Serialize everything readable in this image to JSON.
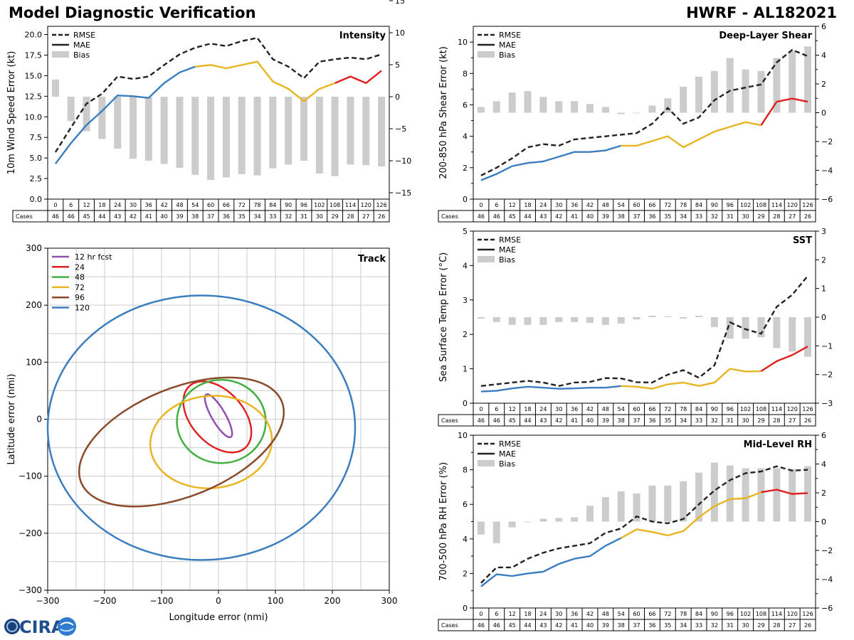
{
  "header": {
    "title": "Model Diagnostic Verification",
    "storm": "HWRF - AL182021"
  },
  "logo": {
    "text": "CIRA"
  },
  "legend_labels": {
    "rmse": "RMSE",
    "mae": "MAE",
    "bias": "Bias"
  },
  "table": {
    "cases_label": "Cases",
    "hours": [
      0,
      6,
      12,
      18,
      24,
      30,
      36,
      42,
      48,
      54,
      60,
      66,
      72,
      78,
      84,
      90,
      96,
      102,
      108,
      114,
      120,
      126
    ],
    "cases": [
      46,
      46,
      45,
      44,
      43,
      42,
      41,
      40,
      39,
      38,
      37,
      36,
      35,
      34,
      33,
      32,
      31,
      30,
      29,
      28,
      27,
      26
    ]
  },
  "colors": {
    "early": "#3a7dc0",
    "mid": "#e8b420",
    "late": "#e02020",
    "rmse": "#222222",
    "bias": "#cccccc",
    "grid": "#cccccc"
  },
  "chart_data": [
    {
      "id": "intensity",
      "type": "line",
      "title": "Intensity",
      "ylabel": "10m Wind Speed Error (kt)",
      "ylim": [
        0,
        21
      ],
      "yticks": [
        "0.0",
        "2.5",
        "5.0",
        "7.5",
        "10.0",
        "12.5",
        "15.0",
        "17.5",
        "20.0"
      ],
      "y2lim": [
        -16,
        11
      ],
      "y2ticks": [
        "−15",
        "−10",
        "−5",
        "0",
        "5",
        "10",
        "15"
      ],
      "x": [
        0,
        6,
        12,
        18,
        24,
        30,
        36,
        42,
        48,
        54,
        60,
        66,
        72,
        78,
        84,
        90,
        96,
        102,
        108,
        114,
        120,
        126
      ],
      "rmse": [
        5.7,
        8.7,
        11.6,
        12.8,
        14.9,
        14.6,
        14.9,
        16.3,
        17.6,
        18.4,
        18.9,
        18.6,
        19.2,
        19.6,
        17.0,
        16.1,
        14.7,
        16.7,
        17.0,
        17.2,
        17.0,
        17.6
      ],
      "mae": [
        4.3,
        6.8,
        9.0,
        10.7,
        12.6,
        12.5,
        12.3,
        14.1,
        15.4,
        16.1,
        16.3,
        15.9,
        16.3,
        16.7,
        14.3,
        13.4,
        11.9,
        13.4,
        14.1,
        14.9,
        14.1,
        15.6
      ],
      "bias": [
        2.7,
        -3.8,
        -5.4,
        -6.6,
        -8.1,
        -9.7,
        -10.0,
        -10.5,
        -11.1,
        -12.2,
        -13.0,
        -12.6,
        -12.1,
        -12.3,
        -11.2,
        -10.6,
        -10.0,
        -12.0,
        -12.4,
        -10.6,
        -10.7,
        -10.9
      ]
    },
    {
      "id": "shear",
      "type": "line",
      "title": "Deep-Layer Shear",
      "ylabel": "200-850 hPa Shear Error (kt)",
      "ylim": [
        0,
        11
      ],
      "yticks": [
        "0",
        "2",
        "4",
        "6",
        "8",
        "10"
      ],
      "y2lim": [
        -6,
        6
      ],
      "y2ticks": [
        "−6",
        "−4",
        "−2",
        "0",
        "2",
        "4",
        "6"
      ],
      "x": [
        0,
        6,
        12,
        18,
        24,
        30,
        36,
        42,
        48,
        54,
        60,
        66,
        72,
        78,
        84,
        90,
        96,
        102,
        108,
        114,
        120,
        126
      ],
      "rmse": [
        1.5,
        2.0,
        2.6,
        3.3,
        3.5,
        3.4,
        3.8,
        3.9,
        4.0,
        4.1,
        4.2,
        4.8,
        5.8,
        4.8,
        5.2,
        6.3,
        6.9,
        7.1,
        7.3,
        8.7,
        9.5,
        9.1
      ],
      "mae": [
        1.2,
        1.6,
        2.1,
        2.3,
        2.4,
        2.7,
        3.0,
        3.0,
        3.1,
        3.4,
        3.4,
        3.7,
        4.0,
        3.3,
        3.8,
        4.3,
        4.6,
        4.9,
        4.7,
        6.2,
        6.4,
        6.2
      ],
      "bias": [
        0.4,
        0.8,
        1.4,
        1.5,
        1.1,
        0.8,
        0.8,
        0.6,
        0.4,
        -0.1,
        0.0,
        0.5,
        1.0,
        1.8,
        2.5,
        2.9,
        3.8,
        3.0,
        2.9,
        3.8,
        4.3,
        4.6
      ]
    },
    {
      "id": "sst",
      "type": "line",
      "title": "SST",
      "ylabel": "Sea Surface Temp Error (°C)",
      "ylim": [
        0,
        5
      ],
      "yticks": [
        "0",
        "1",
        "2",
        "3",
        "4",
        "5"
      ],
      "y2lim": [
        -3,
        3
      ],
      "y2ticks": [
        "−3",
        "−2",
        "−1",
        "0",
        "1",
        "2",
        "3"
      ],
      "x": [
        0,
        6,
        12,
        18,
        24,
        30,
        36,
        42,
        48,
        54,
        60,
        66,
        72,
        78,
        84,
        90,
        96,
        102,
        108,
        114,
        120,
        126
      ],
      "rmse": [
        0.5,
        0.55,
        0.6,
        0.65,
        0.6,
        0.5,
        0.6,
        0.62,
        0.73,
        0.72,
        0.61,
        0.6,
        0.83,
        0.96,
        0.74,
        1.1,
        2.35,
        2.15,
        2.02,
        2.8,
        3.15,
        3.7
      ],
      "mae": [
        0.34,
        0.36,
        0.43,
        0.48,
        0.45,
        0.42,
        0.43,
        0.45,
        0.45,
        0.5,
        0.48,
        0.42,
        0.55,
        0.6,
        0.5,
        0.6,
        1.0,
        0.92,
        0.93,
        1.22,
        1.4,
        1.65
      ],
      "bias": [
        -0.05,
        -0.17,
        -0.27,
        -0.27,
        -0.27,
        -0.17,
        -0.17,
        -0.2,
        -0.27,
        -0.22,
        -0.08,
        0.05,
        0.03,
        -0.05,
        0.05,
        -0.35,
        -0.75,
        -0.75,
        -0.7,
        -1.08,
        -1.2,
        -1.38
      ]
    },
    {
      "id": "rh",
      "type": "line",
      "title": "Mid-Level RH",
      "ylabel": "700-500 hPa RH Error (%)",
      "ylim": [
        0,
        10
      ],
      "yticks": [
        "0",
        "2",
        "4",
        "6",
        "8",
        "10"
      ],
      "y2lim": [
        -6,
        6
      ],
      "y2ticks": [
        "−6",
        "−4",
        "−2",
        "0",
        "2",
        "4",
        "6"
      ],
      "x": [
        0,
        6,
        12,
        18,
        24,
        30,
        36,
        42,
        48,
        54,
        60,
        66,
        72,
        78,
        84,
        90,
        96,
        102,
        108,
        114,
        120,
        126
      ],
      "rmse": [
        1.45,
        2.35,
        2.35,
        2.85,
        3.2,
        3.45,
        3.6,
        3.75,
        4.35,
        4.6,
        5.3,
        5.0,
        4.9,
        5.15,
        6.0,
        6.8,
        7.4,
        7.8,
        7.9,
        8.2,
        7.95,
        8.0
      ],
      "mae": [
        1.25,
        1.95,
        1.85,
        2.0,
        2.1,
        2.55,
        2.85,
        3.0,
        3.6,
        4.05,
        4.55,
        4.4,
        4.2,
        4.45,
        5.25,
        5.9,
        6.3,
        6.35,
        6.7,
        6.85,
        6.6,
        6.65
      ],
      "bias": [
        -0.9,
        -1.5,
        -0.4,
        0.0,
        0.2,
        0.25,
        0.3,
        1.1,
        1.7,
        2.1,
        1.95,
        2.5,
        2.5,
        2.8,
        3.4,
        4.1,
        3.9,
        3.7,
        3.7,
        3.7,
        3.65,
        3.85
      ]
    },
    {
      "id": "track",
      "type": "scatter",
      "title": "Track",
      "xlabel": "Longitude error (nmi)",
      "ylabel": "Latitude error (nmi)",
      "xlim": [
        -300,
        300
      ],
      "ylim": [
        -300,
        300
      ],
      "xticks": [
        "−300",
        "−200",
        "−100",
        "0",
        "100",
        "200",
        "300"
      ],
      "yticks": [
        "−300",
        "−200",
        "−100",
        "0",
        "100",
        "200",
        "300"
      ],
      "ellipses": [
        {
          "label": "12 hr fcst",
          "color": "#9050b0",
          "cx": 0,
          "cy": 6,
          "rx": 12,
          "ry": 43,
          "rot": -30
        },
        {
          "label": "24",
          "color": "#e02020",
          "cx": -2,
          "cy": 4,
          "rx": 46,
          "ry": 73,
          "rot": -42
        },
        {
          "label": "48",
          "color": "#40b040",
          "cx": 5,
          "cy": -4,
          "rx": 78,
          "ry": 73,
          "rot": 0
        },
        {
          "label": "72",
          "color": "#e8b420",
          "cx": -13,
          "cy": -40,
          "rx": 107,
          "ry": 81,
          "rot": -5
        },
        {
          "label": "96",
          "color": "#8b4a2a",
          "cx": -65,
          "cy": -40,
          "rx": 190,
          "ry": 95,
          "rot": -22
        },
        {
          "label": "120",
          "color": "#3a7dc0",
          "cx": -30,
          "cy": -15,
          "rx": 270,
          "ry": 232,
          "rot": 0
        }
      ]
    }
  ]
}
